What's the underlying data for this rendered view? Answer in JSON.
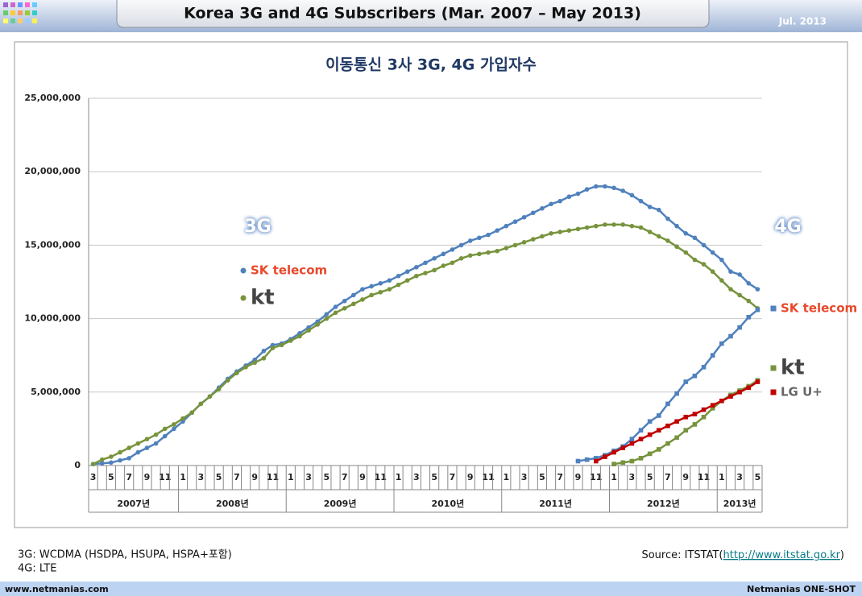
{
  "header": {
    "title": "Korea 3G and 4G Subscribers (Mar. 2007 – May 2013)",
    "date": "Jul. 2013"
  },
  "chart_data": {
    "type": "line",
    "title": "이동통신 3사 3G, 4G 가입자수",
    "categories": [
      "3",
      null,
      "5",
      null,
      "7",
      null,
      "9",
      null,
      "11",
      null,
      "1",
      null,
      "3",
      null,
      "5",
      null,
      "7",
      null,
      "9",
      null,
      "11",
      null,
      "1",
      null,
      "3",
      null,
      "5",
      null,
      "7",
      null,
      "9",
      null,
      "11",
      null,
      "1",
      null,
      "3",
      null,
      "5",
      null,
      "7",
      null,
      "9",
      null,
      "11",
      null,
      "1",
      null,
      "3",
      null,
      "5",
      null,
      "7",
      null,
      "9",
      null,
      "11",
      null,
      "1",
      null,
      "3",
      null,
      "5",
      null,
      "7",
      null,
      "9",
      null,
      "11",
      null,
      "1",
      null,
      "3",
      null,
      "5"
    ],
    "year_labels": [
      "2007년",
      "2008년",
      "2009년",
      "2010년",
      "2011년",
      "2012년",
      "2013년"
    ],
    "ylim": [
      0,
      25000000
    ],
    "yticks": [
      0,
      {
        "value": 5000000,
        "label": "5,000,000"
      },
      {
        "value": 10000000,
        "label": "10,000,000"
      },
      {
        "value": 15000000,
        "label": "15,000,000"
      },
      {
        "value": 20000000,
        "label": "20,000,000"
      },
      {
        "value": 25000000,
        "label": "25,000,000"
      }
    ],
    "grid": true,
    "series": [
      {
        "name": "SK telecom",
        "generation": "3G",
        "color": "#4f81bd",
        "marker": "circle",
        "values": [
          100000,
          150000,
          200000,
          350000,
          500000,
          900000,
          1200000,
          1500000,
          2000000,
          2500000,
          3000000,
          3600000,
          4200000,
          4700000,
          5300000,
          5900000,
          6400000,
          6800000,
          7200000,
          7800000,
          8200000,
          8300000,
          8600000,
          9000000,
          9400000,
          9800000,
          10300000,
          10800000,
          11200000,
          11600000,
          12000000,
          12200000,
          12400000,
          12600000,
          12900000,
          13200000,
          13500000,
          13800000,
          14100000,
          14400000,
          14700000,
          15000000,
          15300000,
          15500000,
          15700000,
          16000000,
          16300000,
          16600000,
          16900000,
          17200000,
          17500000,
          17800000,
          18000000,
          18300000,
          18500000,
          18800000,
          19000000,
          19000000,
          18900000,
          18700000,
          18400000,
          18000000,
          17600000,
          17400000,
          16800000,
          16300000,
          15800000,
          15500000,
          15000000,
          14500000,
          14000000,
          13200000,
          13000000,
          12400000,
          12000000
        ]
      },
      {
        "name": "kt",
        "generation": "3G",
        "color": "#77933c",
        "marker": "circle",
        "values": [
          100000,
          400000,
          600000,
          900000,
          1200000,
          1500000,
          1800000,
          2100000,
          2500000,
          2800000,
          3200000,
          3600000,
          4200000,
          4700000,
          5200000,
          5800000,
          6300000,
          6700000,
          7000000,
          7300000,
          8000000,
          8200000,
          8500000,
          8800000,
          9200000,
          9600000,
          10000000,
          10400000,
          10700000,
          11000000,
          11300000,
          11600000,
          11800000,
          12000000,
          12300000,
          12600000,
          12900000,
          13100000,
          13300000,
          13600000,
          13800000,
          14100000,
          14300000,
          14400000,
          14500000,
          14600000,
          14800000,
          15000000,
          15200000,
          15400000,
          15600000,
          15800000,
          15900000,
          16000000,
          16100000,
          16200000,
          16300000,
          16400000,
          16400000,
          16400000,
          16300000,
          16200000,
          15900000,
          15600000,
          15300000,
          14900000,
          14500000,
          14000000,
          13700000,
          13200000,
          12600000,
          12000000,
          11600000,
          11200000,
          10700000
        ]
      },
      {
        "name": "SK telecom",
        "generation": "4G",
        "color": "#4f81bd",
        "marker": "square",
        "values": [
          null,
          null,
          null,
          null,
          null,
          null,
          null,
          null,
          null,
          null,
          null,
          null,
          null,
          null,
          null,
          null,
          null,
          null,
          null,
          null,
          null,
          null,
          null,
          null,
          null,
          null,
          null,
          null,
          null,
          null,
          null,
          null,
          null,
          null,
          null,
          null,
          null,
          null,
          null,
          null,
          null,
          null,
          null,
          null,
          null,
          null,
          null,
          null,
          null,
          null,
          null,
          null,
          null,
          null,
          300000,
          400000,
          500000,
          700000,
          1000000,
          1300000,
          1800000,
          2400000,
          3000000,
          3400000,
          4200000,
          4900000,
          5700000,
          6100000,
          6700000,
          7500000,
          8300000,
          8800000,
          9400000,
          10100000,
          10600000
        ]
      },
      {
        "name": "kt",
        "generation": "4G",
        "color": "#77933c",
        "marker": "square",
        "values": [
          null,
          null,
          null,
          null,
          null,
          null,
          null,
          null,
          null,
          null,
          null,
          null,
          null,
          null,
          null,
          null,
          null,
          null,
          null,
          null,
          null,
          null,
          null,
          null,
          null,
          null,
          null,
          null,
          null,
          null,
          null,
          null,
          null,
          null,
          null,
          null,
          null,
          null,
          null,
          null,
          null,
          null,
          null,
          null,
          null,
          null,
          null,
          null,
          null,
          null,
          null,
          null,
          null,
          null,
          null,
          null,
          null,
          null,
          100000,
          200000,
          300000,
          500000,
          800000,
          1100000,
          1500000,
          1900000,
          2400000,
          2800000,
          3300000,
          3900000,
          4400000,
          4800000,
          5100000,
          5400000,
          5800000
        ]
      },
      {
        "name": "LG U+",
        "generation": "4G",
        "color": "#c00000",
        "marker": "square",
        "values": [
          null,
          null,
          null,
          null,
          null,
          null,
          null,
          null,
          null,
          null,
          null,
          null,
          null,
          null,
          null,
          null,
          null,
          null,
          null,
          null,
          null,
          null,
          null,
          null,
          null,
          null,
          null,
          null,
          null,
          null,
          null,
          null,
          null,
          null,
          null,
          null,
          null,
          null,
          null,
          null,
          null,
          null,
          null,
          null,
          null,
          null,
          null,
          null,
          null,
          null,
          null,
          null,
          null,
          null,
          null,
          null,
          300000,
          600000,
          900000,
          1200000,
          1500000,
          1800000,
          2100000,
          2400000,
          2700000,
          3000000,
          3300000,
          3500000,
          3800000,
          4100000,
          4400000,
          4700000,
          5000000,
          5300000,
          5700000
        ]
      }
    ]
  },
  "notes": [
    "3G: WCDMA (HSDPA, HSUPA, HSPA+포함)",
    "4G: LTE"
  ],
  "source": {
    "prefix": "Source: ITSTAT(",
    "link": "http://www.itstat.go.kr",
    "suffix": ")"
  },
  "footer": {
    "left": "www.netmanias.com",
    "right": "Netmanias ONE-SHOT"
  }
}
